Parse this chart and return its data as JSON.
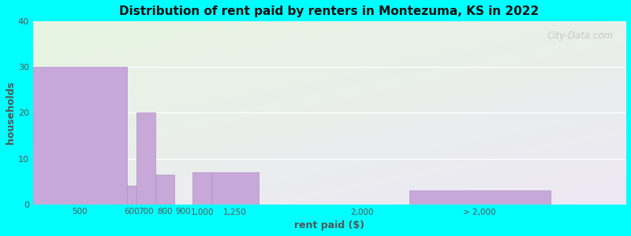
{
  "title": "Distribution of rent paid by renters in Montezuma, KS in 2022",
  "xlabel": "rent paid ($)",
  "ylabel": "households",
  "background_outer": "#00FFFF",
  "background_top_left": "#e6f5e1",
  "background_bottom_right": "#ede8f5",
  "bar_color": "#c8a8d8",
  "bar_edge_color": "#b090c8",
  "ylim": [
    0,
    40
  ],
  "yticks": [
    0,
    10,
    20,
    30,
    40
  ],
  "watermark": "City-Data.com",
  "bar_lefts": [
    50,
    550,
    600,
    700,
    800,
    900,
    1000,
    1750,
    2050
  ],
  "bar_widths": [
    500,
    50,
    100,
    100,
    100,
    100,
    250,
    50,
    750
  ],
  "values": [
    30,
    4,
    20,
    6.5,
    0,
    7,
    7,
    0,
    3
  ],
  "xtick_positions": [
    300,
    575,
    650,
    750,
    850,
    950,
    1125,
    1800,
    2425
  ],
  "xtick_labels": [
    "500",
    "600",
    "700",
    "800",
    "900",
    "1,000",
    "1,250",
    "2,000",
    "> 2,000"
  ],
  "xlim": [
    50,
    3200
  ]
}
